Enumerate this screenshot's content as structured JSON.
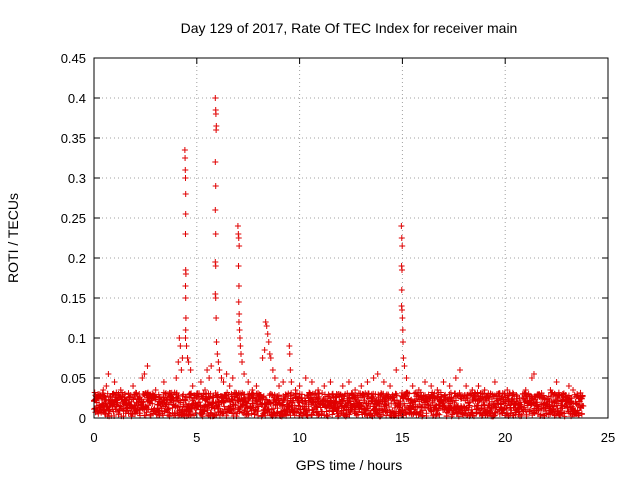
{
  "chart_data": {
    "type": "scatter",
    "title": "Day 129 of 2017, Rate Of TEC Index for receiver main",
    "xlabel": "GPS time / hours",
    "ylabel": "ROTI / TECUs",
    "xlim": [
      0,
      25
    ],
    "ylim": [
      0,
      0.45
    ],
    "x_ticks": [
      0,
      5,
      10,
      15,
      20,
      25
    ],
    "x_tick_labels": [
      "0",
      "5",
      "10",
      "15",
      "20",
      "25"
    ],
    "y_ticks": [
      0,
      0.05,
      0.1,
      0.15,
      0.2,
      0.25,
      0.3,
      0.35,
      0.4,
      0.45
    ],
    "y_tick_labels": [
      "0",
      "0.05",
      "0.1",
      "0.15",
      "0.2",
      "0.25",
      "0.3",
      "0.35",
      "0.4",
      "0.45"
    ],
    "grid": true,
    "legend": "none",
    "marker": "plus",
    "color": "#e00000",
    "series": [
      {
        "points": [
          [
            0.05,
            0.012
          ],
          [
            0.1,
            0.022
          ],
          [
            0.15,
            0.008
          ],
          [
            0.2,
            0.03
          ],
          [
            0.25,
            0.015
          ],
          [
            0.35,
            0.025
          ],
          [
            0.45,
            0.035
          ],
          [
            0.5,
            0.01
          ],
          [
            0.6,
            0.04
          ],
          [
            0.7,
            0.055
          ],
          [
            0.75,
            0.02
          ],
          [
            0.9,
            0.03
          ],
          [
            1.0,
            0.045
          ],
          [
            1.1,
            0.015
          ],
          [
            1.2,
            0.025
          ],
          [
            1.3,
            0.035
          ],
          [
            1.4,
            0.02
          ],
          [
            1.5,
            0.03
          ],
          [
            1.7,
            0.025
          ],
          [
            1.9,
            0.04
          ],
          [
            2.0,
            0.015
          ],
          [
            2.2,
            0.03
          ],
          [
            2.35,
            0.05
          ],
          [
            2.45,
            0.055
          ],
          [
            2.6,
            0.065
          ],
          [
            2.8,
            0.025
          ],
          [
            3.0,
            0.035
          ],
          [
            3.2,
            0.02
          ],
          [
            3.4,
            0.045
          ],
          [
            3.6,
            0.03
          ],
          [
            3.8,
            0.025
          ],
          [
            4.0,
            0.05
          ],
          [
            4.1,
            0.07
          ],
          [
            4.15,
            0.1
          ],
          [
            4.2,
            0.09
          ],
          [
            4.25,
            0.06
          ],
          [
            4.3,
            0.075
          ],
          [
            4.42,
            0.335
          ],
          [
            4.43,
            0.325
          ],
          [
            4.44,
            0.31
          ],
          [
            4.45,
            0.3
          ],
          [
            4.46,
            0.28
          ],
          [
            4.46,
            0.255
          ],
          [
            4.45,
            0.23
          ],
          [
            4.46,
            0.185
          ],
          [
            4.47,
            0.18
          ],
          [
            4.45,
            0.165
          ],
          [
            4.46,
            0.15
          ],
          [
            4.47,
            0.125
          ],
          [
            4.46,
            0.11
          ],
          [
            4.45,
            0.1
          ],
          [
            4.5,
            0.09
          ],
          [
            4.55,
            0.075
          ],
          [
            4.6,
            0.07
          ],
          [
            4.7,
            0.06
          ],
          [
            4.8,
            0.04
          ],
          [
            5.0,
            0.03
          ],
          [
            5.2,
            0.045
          ],
          [
            5.4,
            0.035
          ],
          [
            5.5,
            0.06
          ],
          [
            5.6,
            0.05
          ],
          [
            5.7,
            0.065
          ],
          [
            5.9,
            0.4
          ],
          [
            5.92,
            0.385
          ],
          [
            5.93,
            0.38
          ],
          [
            5.95,
            0.365
          ],
          [
            5.94,
            0.36
          ],
          [
            5.9,
            0.32
          ],
          [
            5.92,
            0.29
          ],
          [
            5.9,
            0.26
          ],
          [
            5.92,
            0.23
          ],
          [
            5.9,
            0.195
          ],
          [
            5.92,
            0.19
          ],
          [
            5.9,
            0.155
          ],
          [
            5.92,
            0.15
          ],
          [
            5.94,
            0.125
          ],
          [
            5.96,
            0.095
          ],
          [
            6.0,
            0.08
          ],
          [
            6.05,
            0.07
          ],
          [
            6.1,
            0.06
          ],
          [
            6.2,
            0.05
          ],
          [
            6.3,
            0.045
          ],
          [
            6.45,
            0.055
          ],
          [
            6.6,
            0.04
          ],
          [
            6.75,
            0.05
          ],
          [
            7.0,
            0.24
          ],
          [
            7.02,
            0.23
          ],
          [
            7.04,
            0.225
          ],
          [
            7.06,
            0.215
          ],
          [
            7.03,
            0.19
          ],
          [
            7.05,
            0.165
          ],
          [
            7.04,
            0.145
          ],
          [
            7.06,
            0.13
          ],
          [
            7.05,
            0.12
          ],
          [
            7.08,
            0.11
          ],
          [
            7.1,
            0.1
          ],
          [
            7.12,
            0.09
          ],
          [
            7.15,
            0.08
          ],
          [
            7.2,
            0.07
          ],
          [
            7.3,
            0.055
          ],
          [
            7.5,
            0.045
          ],
          [
            7.7,
            0.035
          ],
          [
            7.9,
            0.04
          ],
          [
            8.2,
            0.075
          ],
          [
            8.3,
            0.085
          ],
          [
            8.35,
            0.12
          ],
          [
            8.4,
            0.115
          ],
          [
            8.45,
            0.105
          ],
          [
            8.5,
            0.095
          ],
          [
            8.55,
            0.08
          ],
          [
            8.6,
            0.075
          ],
          [
            8.7,
            0.06
          ],
          [
            8.8,
            0.05
          ],
          [
            9.0,
            0.04
          ],
          [
            9.2,
            0.045
          ],
          [
            9.5,
            0.09
          ],
          [
            9.52,
            0.08
          ],
          [
            9.55,
            0.06
          ],
          [
            9.6,
            0.045
          ],
          [
            9.8,
            0.035
          ],
          [
            10.0,
            0.04
          ],
          [
            10.3,
            0.05
          ],
          [
            10.6,
            0.045
          ],
          [
            10.9,
            0.035
          ],
          [
            11.2,
            0.04
          ],
          [
            11.5,
            0.045
          ],
          [
            11.8,
            0.03
          ],
          [
            12.1,
            0.04
          ],
          [
            12.4,
            0.045
          ],
          [
            12.7,
            0.035
          ],
          [
            13.0,
            0.04
          ],
          [
            13.3,
            0.045
          ],
          [
            13.6,
            0.05
          ],
          [
            13.8,
            0.055
          ],
          [
            14.1,
            0.045
          ],
          [
            14.4,
            0.04
          ],
          [
            14.7,
            0.06
          ],
          [
            14.95,
            0.24
          ],
          [
            14.97,
            0.225
          ],
          [
            14.99,
            0.215
          ],
          [
            14.96,
            0.19
          ],
          [
            14.98,
            0.185
          ],
          [
            14.97,
            0.16
          ],
          [
            14.96,
            0.14
          ],
          [
            14.98,
            0.135
          ],
          [
            15.0,
            0.125
          ],
          [
            15.02,
            0.11
          ],
          [
            15.03,
            0.095
          ],
          [
            15.05,
            0.075
          ],
          [
            15.1,
            0.065
          ],
          [
            15.2,
            0.05
          ],
          [
            15.5,
            0.04
          ],
          [
            15.8,
            0.035
          ],
          [
            16.1,
            0.045
          ],
          [
            16.4,
            0.04
          ],
          [
            16.7,
            0.035
          ],
          [
            17.0,
            0.045
          ],
          [
            17.3,
            0.04
          ],
          [
            17.6,
            0.05
          ],
          [
            17.8,
            0.06
          ],
          [
            18.1,
            0.04
          ],
          [
            18.4,
            0.035
          ],
          [
            18.7,
            0.04
          ],
          [
            19.0,
            0.035
          ],
          [
            19.3,
            0.03
          ],
          [
            19.5,
            0.045
          ],
          [
            19.8,
            0.025
          ],
          [
            20.1,
            0.035
          ],
          [
            20.4,
            0.03
          ],
          [
            20.7,
            0.025
          ],
          [
            21.0,
            0.035
          ],
          [
            21.3,
            0.05
          ],
          [
            21.4,
            0.055
          ],
          [
            21.6,
            0.03
          ],
          [
            21.9,
            0.025
          ],
          [
            22.2,
            0.035
          ],
          [
            22.5,
            0.045
          ],
          [
            22.8,
            0.03
          ],
          [
            23.1,
            0.04
          ],
          [
            23.3,
            0.035
          ],
          [
            23.5,
            0.03
          ],
          [
            23.7,
            0.025
          ],
          [
            23.8,
            0.015
          ]
        ]
      }
    ]
  }
}
